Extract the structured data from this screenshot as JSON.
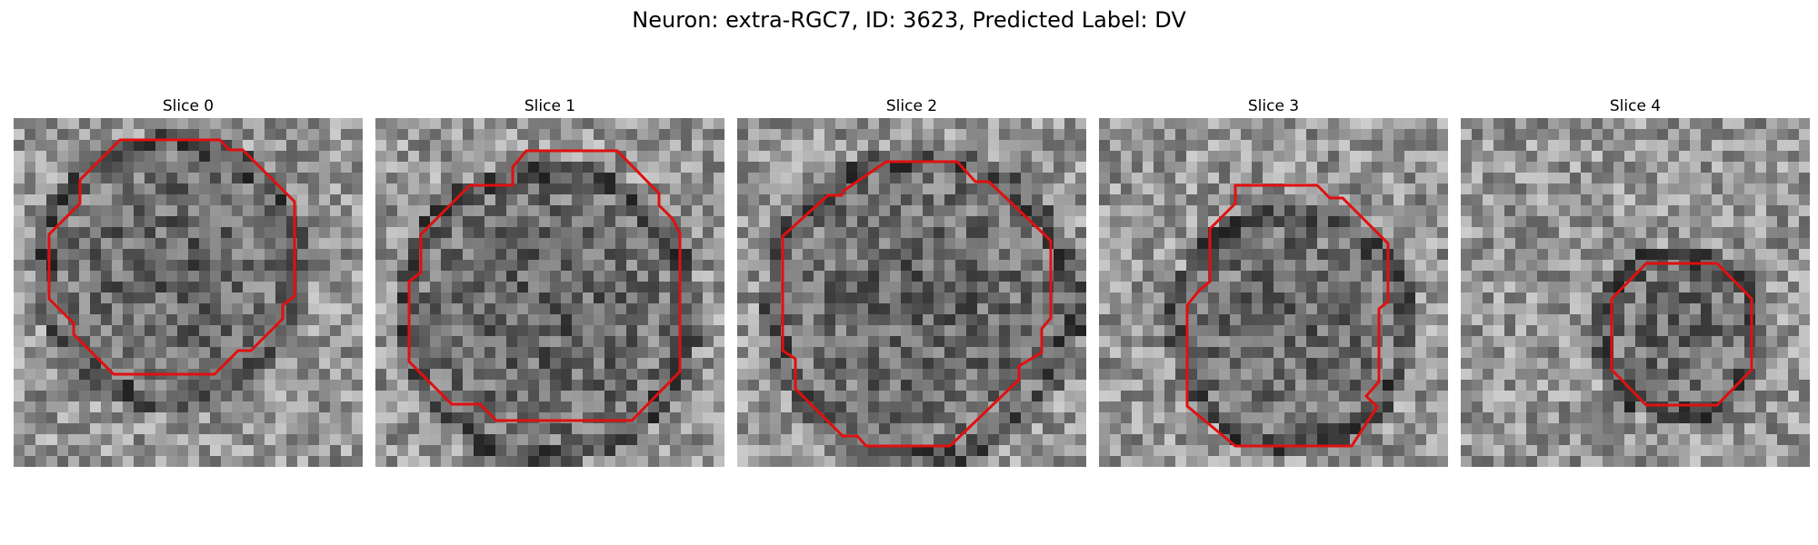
{
  "figure": {
    "title": "Neuron: extra-RGC7, ID: 3623, Predicted Label: DV",
    "contour_color": "#e01010"
  },
  "slices": [
    {
      "label": "Slice 0",
      "seed": 11,
      "dark_cx": 0.45,
      "dark_cy": 0.44,
      "dark_r": 0.34
    },
    {
      "label": "Slice 1",
      "seed": 23,
      "dark_cx": 0.49,
      "dark_cy": 0.56,
      "dark_r": 0.38
    },
    {
      "label": "Slice 2",
      "seed": 37,
      "dark_cx": 0.53,
      "dark_cy": 0.54,
      "dark_r": 0.4
    },
    {
      "label": "Slice 3",
      "seed": 51,
      "dark_cx": 0.55,
      "dark_cy": 0.6,
      "dark_r": 0.3
    },
    {
      "label": "Slice 4",
      "seed": 67,
      "dark_cx": 0.63,
      "dark_cy": 0.62,
      "dark_r": 0.2
    }
  ]
}
